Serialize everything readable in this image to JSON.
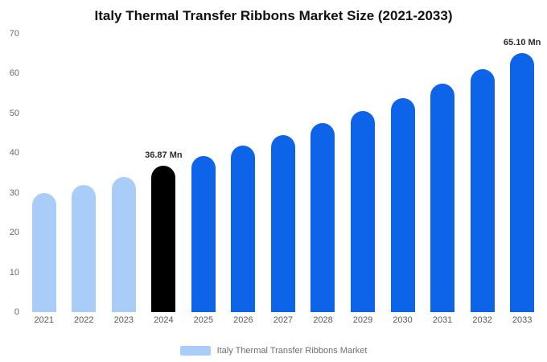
{
  "title": "Italy Thermal Transfer Ribbons Market Size (2021-2033)",
  "legend": {
    "label": "Italy Thermal Transfer Ribbons Market",
    "swatch_color": "#a9cdf8"
  },
  "colors": {
    "historical_bar": "#a9cdf8",
    "highlight_bar": "#000000",
    "forecast_bar": "#0d64e8",
    "axis_text": "#66696b",
    "value_label_text": "#2b2b2b"
  },
  "chart_data": {
    "type": "bar",
    "title": "Italy Thermal Transfer Ribbons Market Size (2021-2033)",
    "xlabel": "",
    "ylabel": "",
    "ylim": [
      0,
      70
    ],
    "yticks": [
      0,
      10,
      20,
      30,
      40,
      50,
      60,
      70
    ],
    "grid": false,
    "legend_position": "bottom",
    "categories": [
      "2021",
      "2022",
      "2023",
      "2024",
      "2025",
      "2026",
      "2027",
      "2028",
      "2029",
      "2030",
      "2031",
      "2032",
      "2033"
    ],
    "values": [
      30,
      32,
      34,
      36.87,
      39.3,
      41.8,
      44.6,
      47.5,
      50.6,
      53.9,
      57.4,
      61.1,
      65.1
    ],
    "bar_colors": [
      "#a9cdf8",
      "#a9cdf8",
      "#a9cdf8",
      "#000000",
      "#0d64e8",
      "#0d64e8",
      "#0d64e8",
      "#0d64e8",
      "#0d64e8",
      "#0d64e8",
      "#0d64e8",
      "#0d64e8",
      "#0d64e8"
    ],
    "annotations": [
      {
        "category": "2024",
        "text": "36.87 Mn"
      },
      {
        "category": "2033",
        "text": "65.10 Mn"
      }
    ]
  }
}
